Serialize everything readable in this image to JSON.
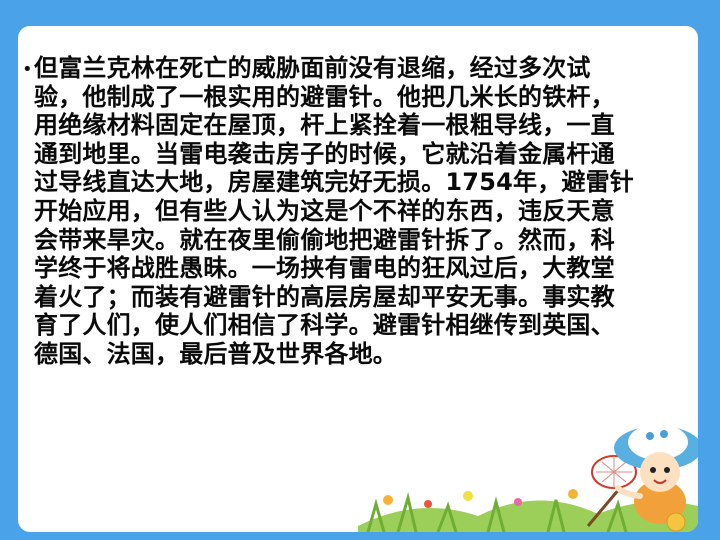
{
  "slide": {
    "paragraph": "但富兰克林在死亡的威胁面前没有退缩，经过多次试验，他制成了一根实用的避雷针。他把几米长的铁杆，用绝缘材料固定在屋顶，杆上紧拴着一根粗导线，一直通到地里。当雷电袭击房子的时候，它就沿着金属杆通过导线直达大地，房屋建筑完好无损。1754年，避雷针开始应用，但有些人认为这是个不祥的东西，违反天意会带来旱灾。就在夜里偷偷地把避雷针拆了。然而，科学终于将战胜愚昧。一场挟有雷电的狂风过后，大教堂着火了；而装有避雷针的高层房屋却平安无事。事实教育了人们，使人们相信了科学。避雷针相继传到英国、德国、法国，最后普及世界各地。",
    "bullet_char": "•"
  },
  "colors": {
    "background": "#4aa3e8",
    "panel": "#ffffff",
    "text": "#0a0a0a"
  },
  "decoration": {
    "icon": "child-with-butterfly-net-illustration"
  }
}
